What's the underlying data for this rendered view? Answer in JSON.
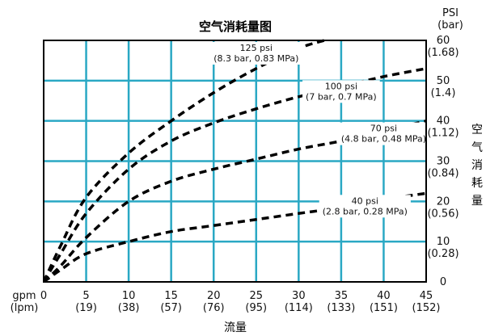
{
  "chart_data": {
    "type": "line",
    "title": "空气消耗量图",
    "xlabel": "流量",
    "ylabel": "空气消耗量",
    "x_units": [
      "gpm",
      "(lpm)"
    ],
    "y_units": [
      "PSI",
      "(bar)"
    ],
    "xlim": [
      0,
      45
    ],
    "ylim": [
      0,
      60
    ],
    "grid": true,
    "x_ticks": [
      {
        "value": 0,
        "label": "0",
        "sub": ""
      },
      {
        "value": 5,
        "label": "5",
        "sub": "(19)"
      },
      {
        "value": 10,
        "label": "10",
        "sub": "(38)"
      },
      {
        "value": 15,
        "label": "15",
        "sub": "(57)"
      },
      {
        "value": 20,
        "label": "20",
        "sub": "(76)"
      },
      {
        "value": 25,
        "label": "25",
        "sub": "(95)"
      },
      {
        "value": 30,
        "label": "30",
        "sub": "(114)"
      },
      {
        "value": 35,
        "label": "35",
        "sub": "(133)"
      },
      {
        "value": 40,
        "label": "40",
        "sub": "(151)"
      },
      {
        "value": 45,
        "label": "45",
        "sub": "(152)"
      }
    ],
    "y_ticks": [
      {
        "value": 0,
        "label": "0",
        "sub": ""
      },
      {
        "value": 10,
        "label": "10",
        "sub": "(0.28)"
      },
      {
        "value": 20,
        "label": "20",
        "sub": "(0.56)"
      },
      {
        "value": 30,
        "label": "30",
        "sub": "(0.84)"
      },
      {
        "value": 40,
        "label": "40",
        "sub": "(1.12)"
      },
      {
        "value": 50,
        "label": "50",
        "sub": "(1.4)"
      },
      {
        "value": 60,
        "label": "60",
        "sub": "(1.68)"
      }
    ],
    "series": [
      {
        "name": "125 psi",
        "detail": "(8.3 bar, 0.83 MPa)",
        "x": [
          0,
          2,
          5,
          10,
          15,
          20,
          25,
          30,
          33
        ],
        "y": [
          0,
          9,
          21,
          32,
          40,
          47,
          53,
          58,
          60
        ]
      },
      {
        "name": "100 psi",
        "detail": "(7 bar, 0.7 MPa)",
        "x": [
          0,
          2,
          5,
          10,
          15,
          20,
          25,
          30,
          35,
          40,
          45
        ],
        "y": [
          0,
          7,
          17,
          28,
          35,
          39.5,
          43,
          46,
          48.5,
          51,
          53
        ]
      },
      {
        "name": "70 psi",
        "detail": "(4.8 bar, 0.48 MPa)",
        "x": [
          0,
          2,
          5,
          10,
          15,
          20,
          25,
          30,
          35,
          40,
          45
        ],
        "y": [
          0,
          4,
          11,
          20,
          25,
          28,
          30.5,
          33,
          35,
          37.5,
          40
        ]
      },
      {
        "name": "40 psi",
        "detail": "(2.8 bar, 0.28 MPa)",
        "x": [
          0,
          2,
          5,
          10,
          15,
          20,
          25,
          30,
          35,
          40,
          45
        ],
        "y": [
          0,
          3,
          7,
          10,
          12.5,
          14,
          15.5,
          17,
          18.5,
          20.5,
          22
        ]
      }
    ],
    "colors": {
      "grid": "#2aa8c4",
      "frame": "#000000",
      "curve": "#000000"
    }
  }
}
